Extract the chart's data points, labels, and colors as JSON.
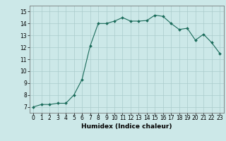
{
  "x": [
    0,
    1,
    2,
    3,
    4,
    5,
    6,
    7,
    8,
    9,
    10,
    11,
    12,
    13,
    14,
    15,
    16,
    17,
    18,
    19,
    20,
    21,
    22,
    23
  ],
  "y": [
    7.0,
    7.2,
    7.2,
    7.3,
    7.3,
    8.0,
    9.3,
    12.1,
    14.0,
    14.0,
    14.2,
    14.5,
    14.2,
    14.2,
    14.25,
    14.7,
    14.6,
    14.0,
    13.5,
    13.6,
    12.6,
    13.1,
    12.4,
    11.5
  ],
  "line_color": "#1a6b5a",
  "marker": "D",
  "marker_size": 2.0,
  "bg_color": "#cce8e8",
  "grid_color": "#aacccc",
  "xlabel": "Humidex (Indice chaleur)",
  "ylim": [
    6.5,
    15.5
  ],
  "xlim": [
    -0.5,
    23.5
  ],
  "yticks": [
    7,
    8,
    9,
    10,
    11,
    12,
    13,
    14,
    15
  ],
  "xticks": [
    0,
    1,
    2,
    3,
    4,
    5,
    6,
    7,
    8,
    9,
    10,
    11,
    12,
    13,
    14,
    15,
    16,
    17,
    18,
    19,
    20,
    21,
    22,
    23
  ],
  "xlabel_fontsize": 6.5,
  "tick_fontsize": 5.5,
  "line_width": 0.8
}
